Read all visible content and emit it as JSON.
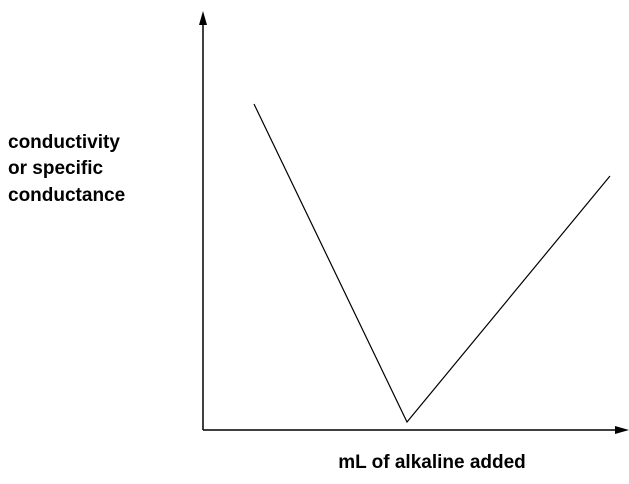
{
  "y_axis_label": {
    "lines": [
      "conductivity",
      "or specific",
      "conductance"
    ]
  },
  "x_axis_label": "mL of alkaline added"
}
